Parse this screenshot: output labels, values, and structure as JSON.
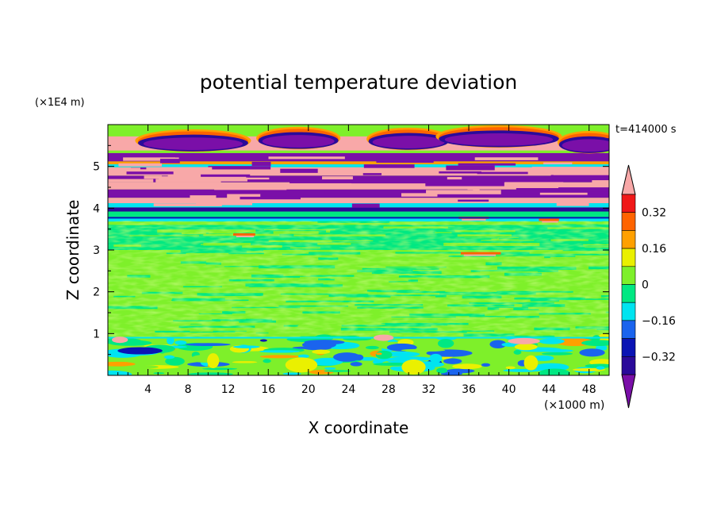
{
  "chart_data": {
    "type": "heatmap",
    "title": "potential temperature deviation",
    "xlabel": "X coordinate",
    "ylabel": "Z coordinate",
    "x_unit": "(×1000 m)",
    "y_unit": "(×1E4 m)",
    "time_label": "t=414000 s",
    "xlim": [
      0,
      50
    ],
    "ylim": [
      0,
      6
    ],
    "x_ticks": [
      4,
      8,
      12,
      16,
      20,
      24,
      28,
      32,
      36,
      40,
      44,
      48
    ],
    "y_ticks": [
      1,
      2,
      3,
      4,
      5
    ],
    "colorbar": {
      "levels": [
        -0.48,
        -0.4,
        -0.32,
        -0.24,
        -0.16,
        -0.08,
        0,
        0.08,
        0.16,
        0.24,
        0.32,
        0.4,
        0.48
      ],
      "labels": [
        "0.32",
        "0.16",
        "0",
        "−0.16",
        "−0.32"
      ],
      "label_values": [
        0.32,
        0.16,
        0,
        -0.16,
        -0.32
      ],
      "colors": [
        "#7a0fa8",
        "#2a0a9a",
        "#0a14b4",
        "#1a64ee",
        "#00e4f0",
        "#00e882",
        "#7ef02a",
        "#eaf000",
        "#ffa000",
        "#ff6400",
        "#f01818",
        "#f8a8a8"
      ]
    },
    "layers": [
      {
        "z_range": [
          0,
          0.9
        ],
        "dominant": "−0.08 to 0.08",
        "colors": [
          "#00e4f0",
          "#7ef02a",
          "#00e882"
        ]
      },
      {
        "z_range": [
          0.9,
          3.7
        ],
        "dominant": "−0.08 to 0.08",
        "colors": [
          "#7ef02a",
          "#00e882"
        ]
      },
      {
        "z_range": [
          3.7,
          5.4
        ],
        "dominant": "banded −0.48 and +0.48",
        "colors": [
          "#7a0fa8",
          "#f8a8a8"
        ]
      },
      {
        "z_range": [
          5.4,
          6.0
        ],
        "dominant": "+0.48 with −0.48 billows",
        "colors": [
          "#f8a8a8",
          "#7a0fa8",
          "#ff6400",
          "#7ef02a"
        ]
      }
    ]
  }
}
